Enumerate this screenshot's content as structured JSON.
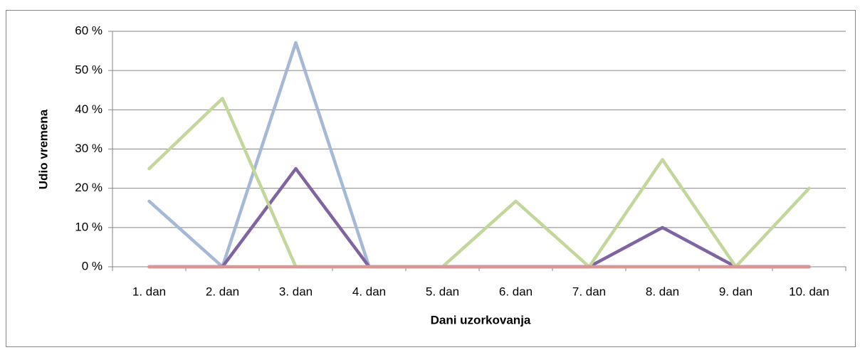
{
  "chart_data": {
    "type": "line",
    "xlabel": "Dani uzorkovanja",
    "ylabel": "Udio vremena",
    "categories": [
      "1. dan",
      "2. dan",
      "3. dan",
      "4. dan",
      "5. dan",
      "6. dan",
      "7. dan",
      "8. dan",
      "9. dan",
      "10. dan"
    ],
    "series": [
      {
        "color": "#a5b8d7",
        "values": [
          16.7,
          0,
          57.1,
          0,
          0,
          0,
          0,
          0,
          0,
          0
        ]
      },
      {
        "color": "#8064a2",
        "values": [
          0,
          0,
          25,
          0,
          0,
          0,
          0,
          10,
          0,
          0
        ]
      },
      {
        "color": "#c3d69b",
        "values": [
          25,
          42.9,
          0,
          0,
          0,
          16.7,
          0,
          27.3,
          0,
          20
        ]
      },
      {
        "color": "#d99694",
        "values": [
          0,
          0,
          0,
          0,
          0,
          0,
          0,
          0,
          0,
          0
        ]
      }
    ],
    "ylim": [
      0,
      60
    ],
    "yticks": [
      {
        "value": 0,
        "label": "0 %"
      },
      {
        "value": 10,
        "label": "10 %"
      },
      {
        "value": 20,
        "label": "20 %"
      },
      {
        "value": 30,
        "label": "30 %"
      },
      {
        "value": 40,
        "label": "40 %"
      },
      {
        "value": 50,
        "label": "50 %"
      },
      {
        "value": 60,
        "label": "60 %"
      }
    ],
    "grid": true
  }
}
